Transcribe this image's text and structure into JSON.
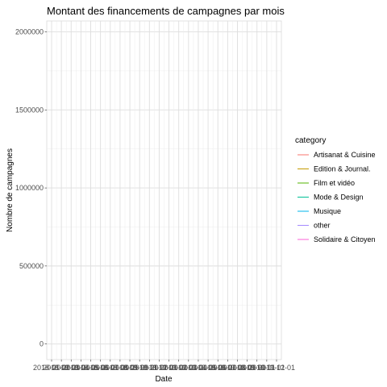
{
  "chart_data": {
    "type": "line",
    "title": "Montant des financements de campagnes par mois",
    "xlabel": "Date",
    "ylabel": "Nombre de campagnes",
    "ylim": [
      -100000,
      2070000
    ],
    "y_ticks": [
      0,
      500000,
      1000000,
      1500000,
      2000000
    ],
    "y_tick_labels": [
      "0",
      "500000",
      "1000000",
      "1500000",
      "2000000"
    ],
    "x_tick_labels": [
      "2018-01-01",
      "2018-02-01",
      "2018-03-01",
      "2018-04-01",
      "2018-05-01",
      "2018-06-01",
      "2018-07-01",
      "2018-08-01",
      "2018-09-01",
      "2018-10-01",
      "2018-11-01",
      "2018-12-01",
      "2019-01-01",
      "2019-02-01",
      "2019-03-01",
      "2019-04-01",
      "2019-05-01",
      "2019-06-01",
      "2019-07-01",
      "2019-08-01",
      "2019-09-01",
      "2019-10-01",
      "2019-11-01",
      "2019-12-01"
    ],
    "grid": true,
    "legend_title": "category",
    "legend_position": "right",
    "series": [
      {
        "name": "Artisanat & Cuisine",
        "color": "#F8766D",
        "values": []
      },
      {
        "name": "Edition & Journal.",
        "color": "#C49A00",
        "values": []
      },
      {
        "name": "Film et vidéo",
        "color": "#53B400",
        "values": []
      },
      {
        "name": "Mode & Design",
        "color": "#00C094",
        "values": []
      },
      {
        "name": "Musique",
        "color": "#00B6EB",
        "values": []
      },
      {
        "name": "other",
        "color": "#A58AFF",
        "values": []
      },
      {
        "name": "Solidaire & Citoyen",
        "color": "#FB61D7",
        "values": []
      }
    ]
  }
}
